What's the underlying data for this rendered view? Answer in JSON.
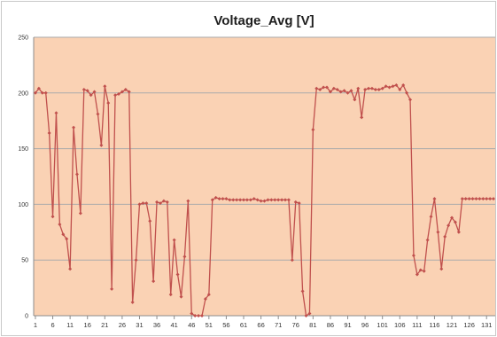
{
  "chart_data": {
    "type": "line",
    "title": "Voltage_Avg [V]",
    "xlabel": "",
    "ylabel": "",
    "ylim": [
      0,
      250
    ],
    "yticks": [
      0,
      50,
      100,
      150,
      200,
      250
    ],
    "xlim": [
      1,
      133
    ],
    "xtick_labels": [
      1,
      6,
      11,
      16,
      21,
      26,
      31,
      36,
      41,
      46,
      51,
      56,
      61,
      66,
      71,
      76,
      81,
      86,
      91,
      96,
      101,
      106,
      111,
      116,
      121,
      126,
      131
    ],
    "grid": "horizontal",
    "legend": "none",
    "colors": {
      "plot_background": "#fad2b4",
      "series": "#c0504d",
      "gridline": "#ababab"
    },
    "series": [
      {
        "name": "",
        "x": [
          1,
          2,
          3,
          4,
          5,
          6,
          7,
          8,
          9,
          10,
          11,
          12,
          13,
          14,
          15,
          16,
          17,
          18,
          19,
          20,
          21,
          22,
          23,
          24,
          25,
          26,
          27,
          28,
          29,
          30,
          31,
          32,
          33,
          34,
          35,
          36,
          37,
          38,
          39,
          40,
          41,
          42,
          43,
          44,
          45,
          46,
          47,
          48,
          49,
          50,
          51,
          52,
          53,
          54,
          55,
          56,
          57,
          58,
          59,
          60,
          61,
          62,
          63,
          64,
          65,
          66,
          67,
          68,
          69,
          70,
          71,
          72,
          73,
          74,
          75,
          76,
          77,
          78,
          79,
          80,
          81,
          82,
          83,
          84,
          85,
          86,
          87,
          88,
          89,
          90,
          91,
          92,
          93,
          94,
          95,
          96,
          97,
          98,
          99,
          100,
          101,
          102,
          103,
          104,
          105,
          106,
          107,
          108,
          109,
          110,
          111,
          112,
          113,
          114,
          115,
          116,
          117,
          118,
          119,
          120,
          121,
          122,
          123,
          124,
          125,
          126,
          127,
          128,
          129,
          130,
          131,
          132,
          133
        ],
        "values": [
          200,
          204,
          200,
          200,
          164,
          89,
          182,
          82,
          73,
          69,
          42,
          169,
          127,
          92,
          203,
          202,
          198,
          201,
          181,
          153,
          206,
          191,
          24,
          198,
          199,
          201,
          203,
          201,
          12,
          50,
          100,
          101,
          101,
          85,
          31,
          102,
          101,
          103,
          102,
          19,
          68,
          37,
          17,
          53,
          103,
          2,
          0,
          0,
          0,
          15,
          19,
          104,
          106,
          105,
          105,
          105,
          104,
          104,
          104,
          104,
          104,
          104,
          104,
          105,
          104,
          103,
          103,
          104,
          104,
          104,
          104,
          104,
          104,
          104,
          50,
          102,
          101,
          22,
          0,
          2,
          167,
          204,
          203,
          205,
          205,
          201,
          204,
          203,
          201,
          202,
          200,
          202,
          194,
          204,
          178,
          203,
          204,
          204,
          203,
          203,
          204,
          206,
          205,
          206,
          207,
          203,
          207,
          200,
          194,
          54,
          37,
          41,
          40,
          68,
          89,
          105,
          75,
          42,
          71,
          81,
          88,
          84,
          75,
          105,
          105,
          105,
          105,
          105,
          105,
          105,
          105,
          105,
          105
        ]
      }
    ]
  }
}
